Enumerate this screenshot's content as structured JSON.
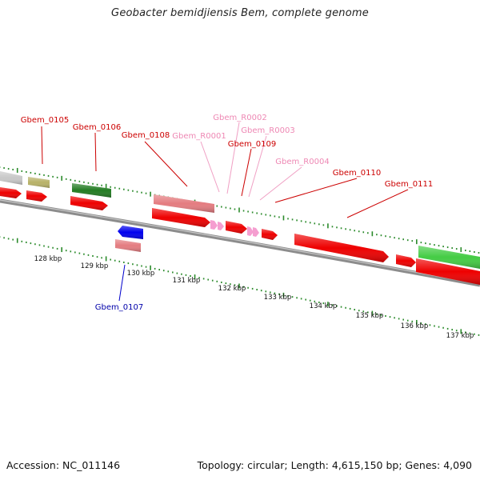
{
  "title": "Geobacter bemidjiensis Bem, complete genome",
  "footer": {
    "accession": "Accession: NC_011146",
    "summary": "Topology: circular; Length: 4,615,150 bp; Genes: 4,090"
  },
  "colors": {
    "cds": "#ee0000",
    "rna_gene": "#e87e86",
    "trna": "#f6a6d0",
    "gene_label": "#cc0000",
    "rna_label": "#e97aa8",
    "reverse_label": "#0000aa",
    "tick": "#2a8a2a",
    "backbone": "#888888"
  },
  "ticks": [
    "128 kbp",
    "129 kbp",
    "130 kbp",
    "131 kbp",
    "132 kbp",
    "133 kbp",
    "134 kbp",
    "135 kbp",
    "136 kbp",
    "137 kbp"
  ],
  "features": [
    {
      "label": "Gbem_0105",
      "type": "gene"
    },
    {
      "label": "Gbem_0106",
      "type": "gene"
    },
    {
      "label": "Gbem_0108",
      "type": "gene"
    },
    {
      "label": "Gbem_R0001",
      "type": "rna"
    },
    {
      "label": "Gbem_R0002",
      "type": "rna"
    },
    {
      "label": "Gbem_R0003",
      "type": "rna"
    },
    {
      "label": "Gbem_0109",
      "type": "gene"
    },
    {
      "label": "Gbem_R0004",
      "type": "rna"
    },
    {
      "label": "Gbem_0110",
      "type": "gene"
    },
    {
      "label": "Gbem_0111",
      "type": "gene"
    },
    {
      "label": "Gbem_0107",
      "type": "reverse"
    }
  ]
}
